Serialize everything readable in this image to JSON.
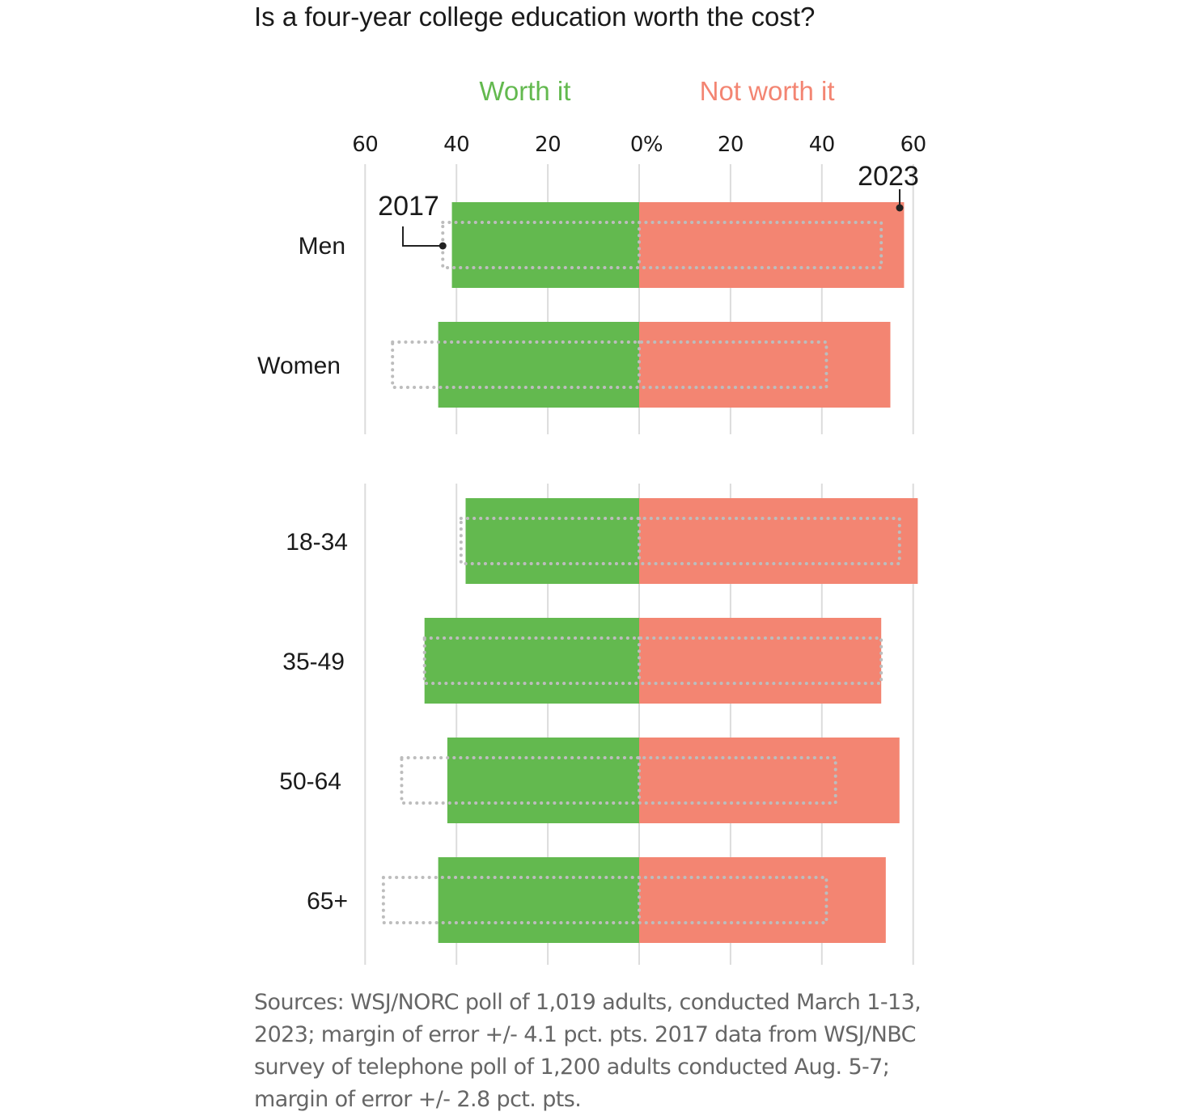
{
  "chart_data": {
    "type": "bar",
    "title": "Is a four-year college education worth the cost?",
    "legend": [
      {
        "name": "Worth it",
        "color": "#63b94f",
        "side": "left"
      },
      {
        "name": "Not worth it",
        "color": "#f38572",
        "side": "right"
      }
    ],
    "x_ticks": [
      "60",
      "40",
      "20",
      "0%",
      "20",
      "40",
      "60"
    ],
    "xlim": [
      -60,
      60
    ],
    "annotations": {
      "year_2017": "2017",
      "year_2023": "2023"
    },
    "groups": [
      {
        "categories": [
          "Men",
          "Women"
        ]
      },
      {
        "categories": [
          "18-34",
          "35-49",
          "50-64",
          "65+"
        ]
      }
    ],
    "series": [
      {
        "name": "Worth it",
        "year": "2023",
        "values": [
          41,
          44,
          38,
          47,
          42,
          44
        ]
      },
      {
        "name": "Not worth it",
        "year": "2023",
        "values": [
          58,
          55,
          61,
          53,
          57,
          54
        ]
      },
      {
        "name": "Worth it",
        "year": "2017",
        "values": [
          43,
          54,
          39,
          47,
          52,
          56
        ]
      },
      {
        "name": "Not worth it",
        "year": "2017",
        "values": [
          53,
          41,
          57,
          53,
          43,
          41
        ]
      }
    ],
    "source": "Sources: WSJ/NORC poll of 1,019 adults, conducted March 1-13, 2023; margin of error +/- 4.1 pct. pts. 2017 data from WSJ/NBC survey of telephone poll of 1,200 adults conducted Aug. 5-7; margin of error +/- 2.8 pct. pts."
  }
}
